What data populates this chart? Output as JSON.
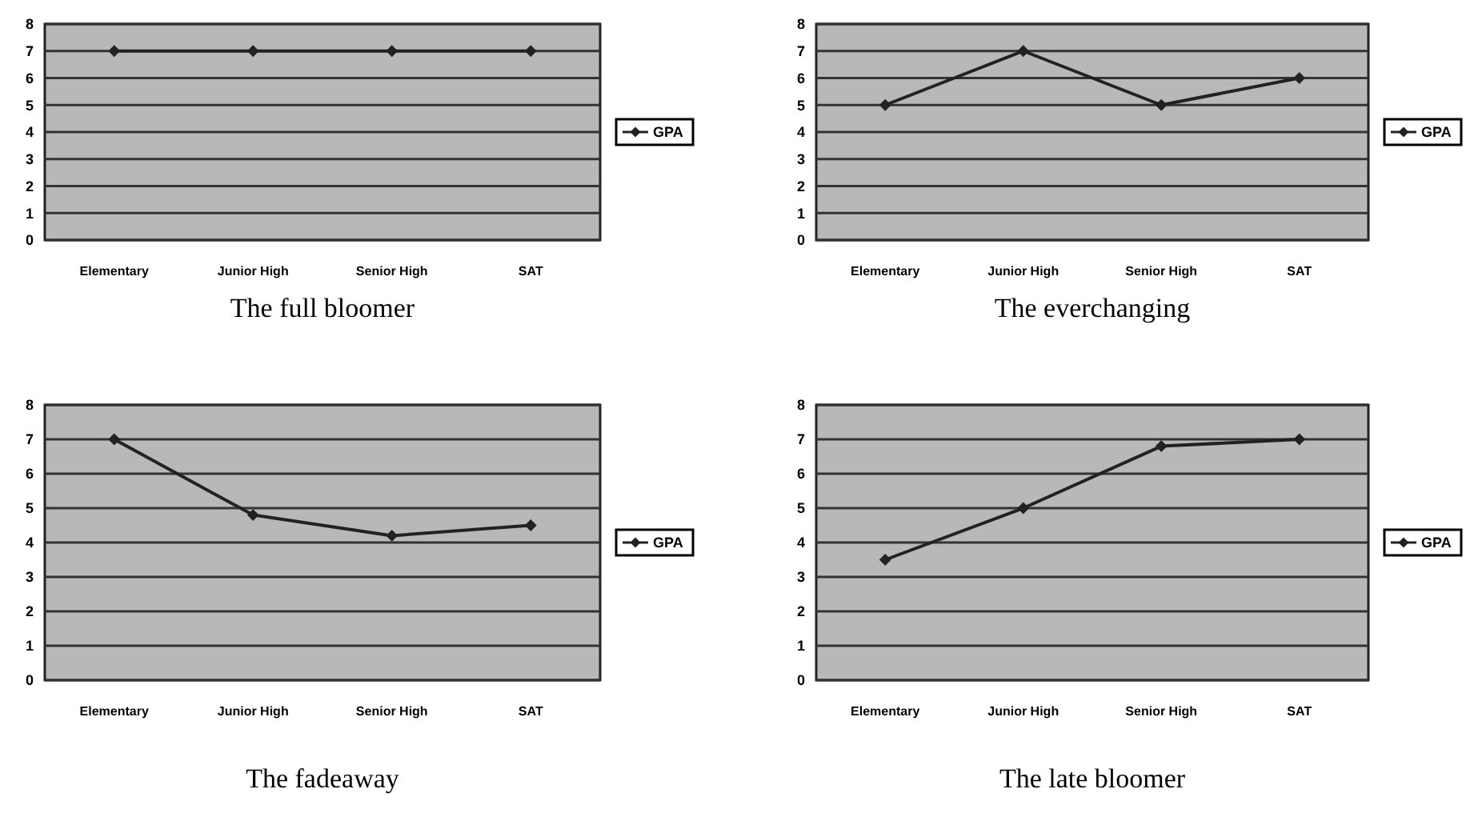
{
  "chart_data": [
    {
      "type": "line",
      "title": "The full bloomer",
      "categories": [
        "Elementary",
        "Junior High",
        "Senior High",
        "SAT"
      ],
      "series": [
        {
          "name": "GPA",
          "color": "#222222",
          "values": [
            7,
            7,
            7,
            7
          ]
        }
      ],
      "ylim": [
        0,
        8
      ],
      "yticks": [
        0,
        1,
        2,
        3,
        4,
        5,
        6,
        7,
        8
      ],
      "grid": "y",
      "legend": "right",
      "marker": "diamond",
      "line_style": "solid"
    },
    {
      "type": "line",
      "title": "The everchanging",
      "categories": [
        "Elementary",
        "Junior High",
        "Senior High",
        "SAT"
      ],
      "series": [
        {
          "name": "GPA",
          "color": "#222222",
          "values": [
            5,
            7,
            5,
            6
          ]
        }
      ],
      "ylim": [
        0,
        8
      ],
      "yticks": [
        0,
        1,
        2,
        3,
        4,
        5,
        6,
        7,
        8
      ],
      "grid": "y",
      "legend": "right",
      "marker": "diamond",
      "line_style": "solid"
    },
    {
      "type": "line",
      "title": "The fadeaway",
      "categories": [
        "Elementary",
        "Junior High",
        "Senior High",
        "SAT"
      ],
      "series": [
        {
          "name": "GPA",
          "color": "#222222",
          "values": [
            7,
            4.8,
            4.2,
            4.5
          ]
        }
      ],
      "ylim": [
        0,
        8
      ],
      "yticks": [
        0,
        1,
        2,
        3,
        4,
        5,
        6,
        7,
        8
      ],
      "grid": "y",
      "legend": "right",
      "marker": "diamond",
      "line_style": "solid"
    },
    {
      "type": "line",
      "title": "The late bloomer",
      "categories": [
        "Elementary",
        "Junior High",
        "Senior High",
        "SAT"
      ],
      "series": [
        {
          "name": "GPA",
          "color": "#222222",
          "values": [
            3.5,
            5,
            6.8,
            7
          ]
        }
      ],
      "ylim": [
        0,
        8
      ],
      "yticks": [
        0,
        1,
        2,
        3,
        4,
        5,
        6,
        7,
        8
      ],
      "grid": "y",
      "legend": "right",
      "marker": "diamond",
      "line_style": "solid"
    }
  ]
}
